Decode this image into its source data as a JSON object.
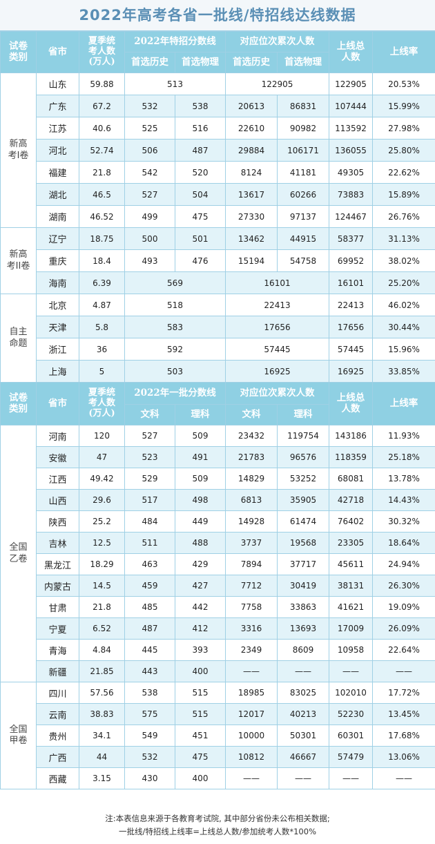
{
  "title": "2022年高考各省一批线/特招线达线数据",
  "header1": {
    "cat": "试卷\n类别",
    "prov": "省市",
    "students": "夏季统\n考人数\n(万人)",
    "score_group": "2022年特招分数线",
    "rank_group": "对应位次累次人数",
    "total": "上线总\n人数",
    "rate": "上线率",
    "sub_a": "首选历史",
    "sub_b": "首选物理",
    "sub_c": "首选历史",
    "sub_d": "首选物理"
  },
  "header2": {
    "cat": "试卷\n类别",
    "prov": "省市",
    "students": "夏季统\n考人数\n(万人)",
    "score_group": "2022年一批分数线",
    "rank_group": "对应位次累次人数",
    "total": "上线总\n人数",
    "rate": "上线率",
    "sub_a": "文科",
    "sub_b": "理科",
    "sub_c": "文科",
    "sub_d": "理科"
  },
  "groups": [
    {
      "label": "新高\n考I卷"
    },
    {
      "label": "新高\n考II卷"
    },
    {
      "label": "自主\n命题"
    },
    {
      "label": "全国\n乙卷"
    },
    {
      "label": "全国\n甲卷"
    }
  ],
  "rows1": [
    {
      "prov": "山东",
      "students": "59.88",
      "score": "513",
      "rank": "122905",
      "total": "122905",
      "rate": "20.53%"
    },
    {
      "prov": "广东",
      "students": "67.2",
      "s1": "532",
      "s2": "538",
      "r1": "20613",
      "r2": "86831",
      "total": "107444",
      "rate": "15.99%"
    },
    {
      "prov": "江苏",
      "students": "40.6",
      "s1": "525",
      "s2": "516",
      "r1": "22610",
      "r2": "90982",
      "total": "113592",
      "rate": "27.98%"
    },
    {
      "prov": "河北",
      "students": "52.74",
      "s1": "506",
      "s2": "487",
      "r1": "29884",
      "r2": "106171",
      "total": "136055",
      "rate": "25.80%"
    },
    {
      "prov": "福建",
      "students": "21.8",
      "s1": "542",
      "s2": "520",
      "r1": "8124",
      "r2": "41181",
      "total": "49305",
      "rate": "22.62%"
    },
    {
      "prov": "湖北",
      "students": "46.5",
      "s1": "527",
      "s2": "504",
      "r1": "13617",
      "r2": "60266",
      "total": "73883",
      "rate": "15.89%"
    },
    {
      "prov": "湖南",
      "students": "46.52",
      "s1": "499",
      "s2": "475",
      "r1": "27330",
      "r2": "97137",
      "total": "124467",
      "rate": "26.76%"
    },
    {
      "prov": "辽宁",
      "students": "18.75",
      "s1": "500",
      "s2": "501",
      "r1": "13462",
      "r2": "44915",
      "total": "58377",
      "rate": "31.13%"
    },
    {
      "prov": "重庆",
      "students": "18.4",
      "s1": "493",
      "s2": "476",
      "r1": "15194",
      "r2": "54758",
      "total": "69952",
      "rate": "38.02%"
    },
    {
      "prov": "海南",
      "students": "6.39",
      "score": "569",
      "rank": "16101",
      "total": "16101",
      "rate": "25.20%"
    },
    {
      "prov": "北京",
      "students": "4.87",
      "score": "518",
      "rank": "22413",
      "total": "22413",
      "rate": "46.02%"
    },
    {
      "prov": "天津",
      "students": "5.8",
      "score": "583",
      "rank": "17656",
      "total": "17656",
      "rate": "30.44%"
    },
    {
      "prov": "浙江",
      "students": "36",
      "score": "592",
      "rank": "57445",
      "total": "57445",
      "rate": "15.96%"
    },
    {
      "prov": "上海",
      "students": "5",
      "score": "503",
      "rank": "16925",
      "total": "16925",
      "rate": "33.85%"
    }
  ],
  "rows2": [
    {
      "prov": "河南",
      "students": "120",
      "s1": "527",
      "s2": "509",
      "r1": "23432",
      "r2": "119754",
      "total": "143186",
      "rate": "11.93%"
    },
    {
      "prov": "安徽",
      "students": "47",
      "s1": "523",
      "s2": "491",
      "r1": "21783",
      "r2": "96576",
      "total": "118359",
      "rate": "25.18%"
    },
    {
      "prov": "江西",
      "students": "49.42",
      "s1": "529",
      "s2": "509",
      "r1": "14829",
      "r2": "53252",
      "total": "68081",
      "rate": "13.78%"
    },
    {
      "prov": "山西",
      "students": "29.6",
      "s1": "517",
      "s2": "498",
      "r1": "6813",
      "r2": "35905",
      "total": "42718",
      "rate": "14.43%"
    },
    {
      "prov": "陕西",
      "students": "25.2",
      "s1": "484",
      "s2": "449",
      "r1": "14928",
      "r2": "61474",
      "total": "76402",
      "rate": "30.32%"
    },
    {
      "prov": "吉林",
      "students": "12.5",
      "s1": "511",
      "s2": "488",
      "r1": "3737",
      "r2": "19568",
      "total": "23305",
      "rate": "18.64%"
    },
    {
      "prov": "黑龙江",
      "students": "18.29",
      "s1": "463",
      "s2": "429",
      "r1": "7894",
      "r2": "37717",
      "total": "45611",
      "rate": "24.94%"
    },
    {
      "prov": "内蒙古",
      "students": "14.5",
      "s1": "459",
      "s2": "427",
      "r1": "7712",
      "r2": "30419",
      "total": "38131",
      "rate": "26.30%"
    },
    {
      "prov": "甘肃",
      "students": "21.8",
      "s1": "485",
      "s2": "442",
      "r1": "7758",
      "r2": "33863",
      "total": "41621",
      "rate": "19.09%"
    },
    {
      "prov": "宁夏",
      "students": "6.52",
      "s1": "487",
      "s2": "412",
      "r1": "3316",
      "r2": "13693",
      "total": "17009",
      "rate": "26.09%"
    },
    {
      "prov": "青海",
      "students": "4.84",
      "s1": "445",
      "s2": "393",
      "r1": "2349",
      "r2": "8609",
      "total": "10958",
      "rate": "22.64%"
    },
    {
      "prov": "新疆",
      "students": "21.85",
      "s1": "443",
      "s2": "400",
      "r1": "——",
      "r2": "——",
      "total": "——",
      "rate": "——"
    },
    {
      "prov": "四川",
      "students": "57.56",
      "s1": "538",
      "s2": "515",
      "r1": "18985",
      "r2": "83025",
      "total": "102010",
      "rate": "17.72%"
    },
    {
      "prov": "云南",
      "students": "38.83",
      "s1": "575",
      "s2": "515",
      "r1": "12017",
      "r2": "40213",
      "total": "52230",
      "rate": "13.45%"
    },
    {
      "prov": "贵州",
      "students": "34.1",
      "s1": "549",
      "s2": "451",
      "r1": "10000",
      "r2": "50301",
      "total": "60301",
      "rate": "17.68%"
    },
    {
      "prov": "广西",
      "students": "44",
      "s1": "532",
      "s2": "475",
      "r1": "10812",
      "r2": "46667",
      "total": "57479",
      "rate": "13.06%"
    },
    {
      "prov": "西藏",
      "students": "3.15",
      "s1": "430",
      "s2": "400",
      "r1": "——",
      "r2": "——",
      "total": "——",
      "rate": "——"
    }
  ],
  "note": {
    "line1": "注:本表信息来源于各教育考试院, 其中部分省份未公布相关数据;",
    "line2": "一批线/特招线上线率=上线总人数/参加统考人数*100%"
  }
}
